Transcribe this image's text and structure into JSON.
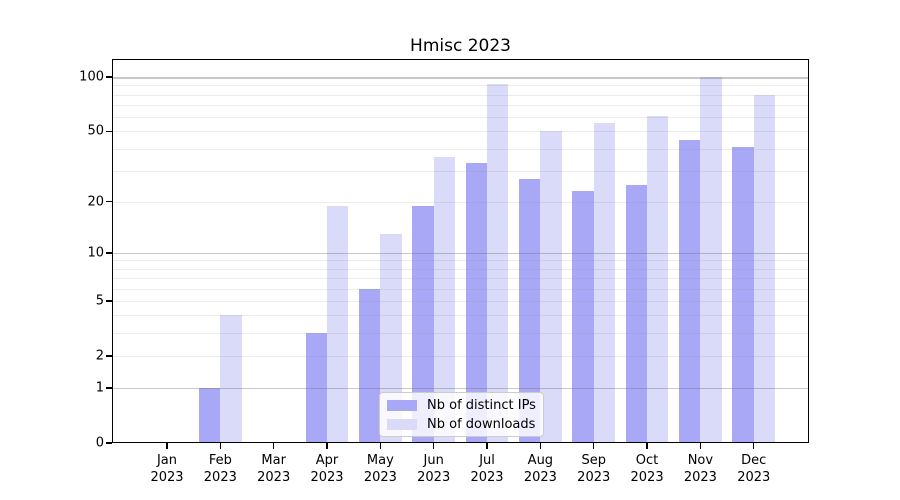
{
  "chart_data": {
    "type": "bar",
    "title": "Hmisc 2023",
    "categories": [
      "Jan",
      "Feb",
      "Mar",
      "Apr",
      "May",
      "Jun",
      "Jul",
      "Aug",
      "Sep",
      "Oct",
      "Nov",
      "Dec"
    ],
    "category_year": "2023",
    "series": [
      {
        "name": "Nb of distinct IPs",
        "color": "#a8a8f6",
        "values": [
          0,
          1,
          0,
          3,
          6,
          19,
          33,
          27,
          23,
          25,
          45,
          41
        ]
      },
      {
        "name": "Nb of downloads",
        "color": "#dadaf9",
        "values": [
          0,
          4,
          0,
          19,
          13,
          36,
          92,
          50,
          56,
          61,
          100,
          80
        ]
      }
    ],
    "yscale": "log1p",
    "ylim": [
      0,
      126
    ],
    "yticks": [
      0,
      1,
      2,
      5,
      10,
      20,
      50,
      100
    ],
    "grid_major": [
      1,
      10,
      100
    ],
    "grid_minor": [
      2,
      3,
      4,
      5,
      6,
      7,
      8,
      9,
      20,
      30,
      40,
      50,
      60,
      70,
      80,
      90
    ],
    "legend_position": "bottom-center"
  }
}
